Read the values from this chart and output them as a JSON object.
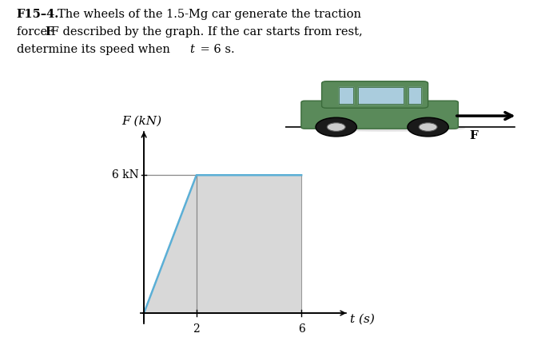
{
  "line_color": "#5bafd6",
  "fill_color": "#d8d8d8",
  "border_color": "#aaaaaa",
  "xlabel": "t (s)",
  "ylabel": "F (kN)",
  "x_ticks": [
    2,
    6
  ],
  "y_label_6kN": "6 kN",
  "xlim": [
    -0.15,
    7.8
  ],
  "ylim": [
    -0.5,
    8.0
  ],
  "background_color": "#ffffff",
  "text_color": "#000000",
  "font_size_axis_label": 11,
  "font_size_tick": 10,
  "car_label": "F",
  "title_text": "F15–4.",
  "problem_line1": "  The wheels of the 1.5-Mg car generate the traction",
  "problem_line2": "force F described by the graph. If the car starts from rest,",
  "problem_line3": "determine its speed when ι = 6 s."
}
